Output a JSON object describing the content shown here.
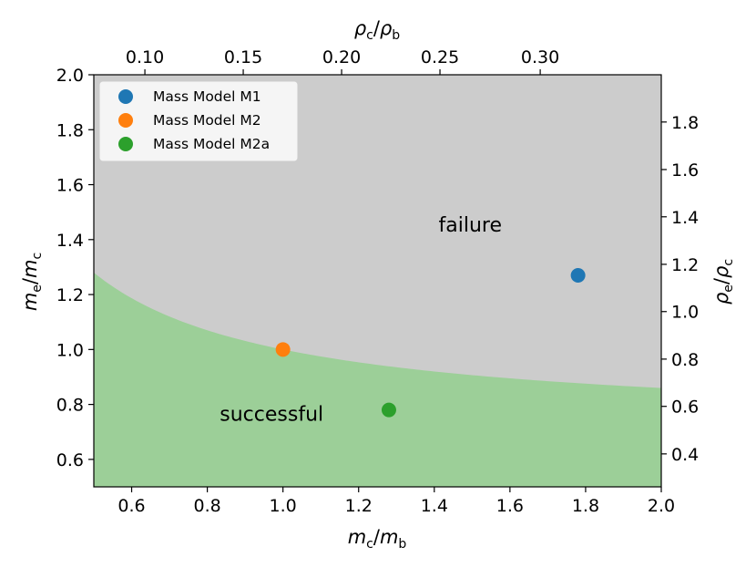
{
  "chart_data": {
    "type": "scatter",
    "x_axis": {
      "label_main": "m",
      "label_main_sub": "c",
      "label_den": "m",
      "label_den_sub": "b",
      "range": [
        0.5,
        2.0
      ],
      "ticks": [
        "0.6",
        "0.8",
        "1.0",
        "1.2",
        "1.4",
        "1.6",
        "1.8",
        "2.0"
      ]
    },
    "y_axis": {
      "label_main": "m",
      "label_main_sub": "e",
      "label_den": "m",
      "label_den_sub": "c",
      "range": [
        0.5,
        2.0
      ],
      "ticks": [
        "0.6",
        "0.8",
        "1.0",
        "1.2",
        "1.4",
        "1.6",
        "1.8",
        "2.0"
      ]
    },
    "top_axis": {
      "label_main": "ρ",
      "label_main_sub": "c",
      "label_den": "ρ",
      "label_den_sub": "b",
      "ticks": [
        "0.10",
        "0.15",
        "0.20",
        "0.25",
        "0.30"
      ],
      "tick_positions_primary": [
        0.635,
        0.895,
        1.155,
        1.415,
        1.68
      ]
    },
    "right_axis": {
      "label_main": "ρ",
      "label_main_sub": "e",
      "label_den": "ρ",
      "label_den_sub": "c",
      "ticks": [
        "0.4",
        "0.6",
        "0.8",
        "1.0",
        "1.2",
        "1.4",
        "1.6",
        "1.8"
      ],
      "tick_positions_primary": [
        0.62,
        0.793,
        0.965,
        1.138,
        1.31,
        1.483,
        1.655,
        1.828
      ]
    },
    "boundary": {
      "formula": "y = 0.72 + 0.28 / x",
      "x_range": [
        0.5,
        2.0
      ]
    },
    "regions": [
      {
        "name": "successful",
        "label": "successful",
        "color": "#9ccf98",
        "label_x": 0.97,
        "label_y": 0.74
      },
      {
        "name": "failure",
        "label": "failure",
        "color": "#cccccc",
        "label_x": 1.495,
        "label_y": 1.43
      }
    ],
    "series": [
      {
        "name": "Mass Model M1",
        "x": 1.78,
        "y": 1.27,
        "color": "#1f77b4"
      },
      {
        "name": "Mass Model M2",
        "x": 1.0,
        "y": 1.0,
        "color": "#ff7f0e"
      },
      {
        "name": "Mass Model M2a",
        "x": 1.28,
        "y": 0.78,
        "color": "#2ca02c"
      }
    ],
    "legend_position": "upper-left"
  }
}
